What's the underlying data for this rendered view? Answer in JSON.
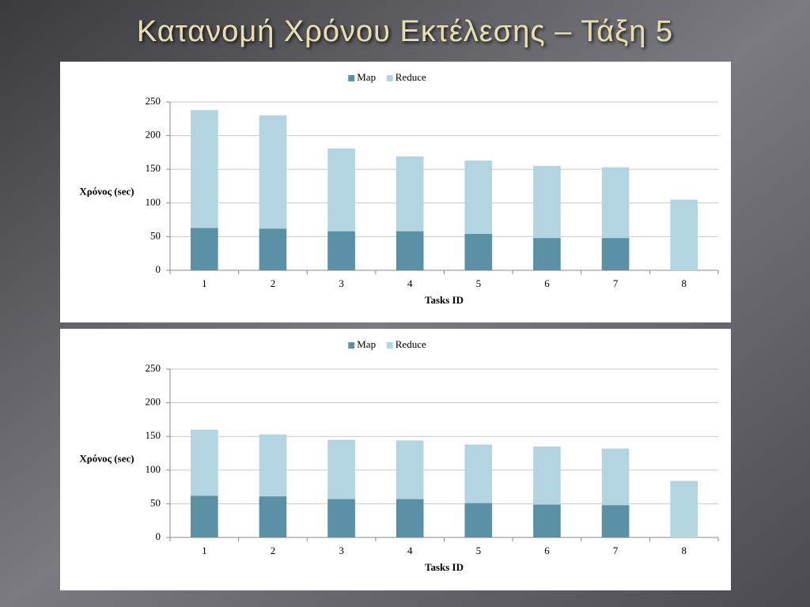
{
  "title": "Κατανομή Χρόνου Εκτέλεσης – Τάξη 5",
  "chart_data": [
    {
      "type": "bar",
      "stacked": true,
      "categories": [
        "1",
        "2",
        "3",
        "4",
        "5",
        "6",
        "7",
        "8"
      ],
      "series": [
        {
          "name": "Map",
          "color": "#5a91a5",
          "values": [
            63,
            62,
            58,
            58,
            54,
            48,
            48,
            0
          ]
        },
        {
          "name": "Reduce",
          "color": "#b3d4e1",
          "values": [
            175,
            168,
            123,
            111,
            109,
            107,
            105,
            105
          ]
        }
      ],
      "ylim": [
        0,
        250
      ],
      "yticks": [
        0,
        50,
        100,
        150,
        200,
        250
      ],
      "x_label": "Tasks ID",
      "y_label": "Χρόνος (sec)",
      "grid": true,
      "legend": "top"
    },
    {
      "type": "bar",
      "stacked": true,
      "categories": [
        "1",
        "2",
        "3",
        "4",
        "5",
        "6",
        "7",
        "8"
      ],
      "series": [
        {
          "name": "Map",
          "color": "#5a91a5",
          "values": [
            62,
            61,
            57,
            57,
            51,
            49,
            48,
            0
          ]
        },
        {
          "name": "Reduce",
          "color": "#b3d4e1",
          "values": [
            98,
            92,
            88,
            87,
            87,
            86,
            84,
            84
          ]
        }
      ],
      "ylim": [
        0,
        250
      ],
      "yticks": [
        0,
        50,
        100,
        150,
        200,
        250
      ],
      "x_label": "Tasks ID",
      "y_label": "Χρόνος (sec)",
      "grid": true,
      "legend": "top"
    }
  ]
}
